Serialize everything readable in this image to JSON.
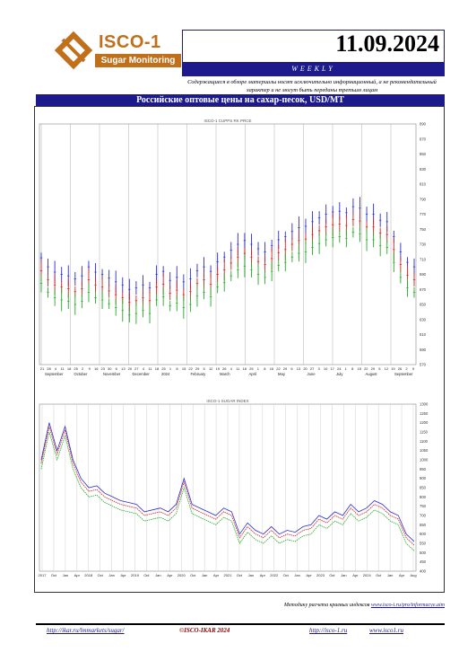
{
  "brand": {
    "name": "ISCO-1",
    "tagline": "Sugar Monitoring",
    "accent": "#c0701a"
  },
  "header": {
    "date": "11.09.2024",
    "period": "WEEKLY",
    "bar_color": "#1c1a8c"
  },
  "disclaimer": "Содержащиеся в обзоре материалы носят исключительно информационный, а не рекомендательный характер и не могут быть переданы третьим лицам",
  "chart_title": "Российские оптовые цены на сахар-песок, USD/MT",
  "footer": {
    "note_prefix": "Методику расчета краевых индексов",
    "note_link": "www.isco-i.ru/pro/informacye.aim",
    "url_left": "http://ikar.ru/lmmarkets/sugar/",
    "center": "©ISCO-IKAR 2024",
    "url_r1": "http://isco-1.ru",
    "url_r2": "www.isco1.ru"
  },
  "chart_data": [
    {
      "type": "line",
      "subtitle": "ISCO-1 CUPPS RK PRCE",
      "y_ticks": [
        570,
        590,
        610,
        630,
        650,
        670,
        690,
        710,
        730,
        750,
        770,
        790,
        810,
        830,
        850,
        870,
        890
      ],
      "x_day_labels": [
        "21",
        "28",
        "4",
        "11",
        "18",
        "25",
        "2",
        "9",
        "16",
        "23",
        "30",
        "6",
        "13",
        "20",
        "27",
        "4",
        "11",
        "18",
        "25",
        "1",
        "8",
        "15",
        "22",
        "29",
        "5",
        "12",
        "19",
        "26",
        "4",
        "11",
        "18",
        "25",
        "1",
        "8",
        "15",
        "22",
        "29",
        "6",
        "13",
        "20",
        "27",
        "3",
        "10",
        "17",
        "24",
        "1",
        "8",
        "15",
        "22",
        "29",
        "5",
        "12",
        "19",
        "26",
        "2",
        "9"
      ],
      "x_month_labels": [
        "September",
        "October",
        "November",
        "December",
        "2024",
        "February",
        "March",
        "April",
        "May",
        "June",
        "July",
        "August",
        "September"
      ],
      "series": [
        {
          "color": "#2b2bd0",
          "values": [
            712,
            700,
            693,
            690,
            688,
            684,
            688,
            700,
            693,
            690,
            685,
            680,
            676,
            670,
            672,
            676,
            672,
            690,
            694,
            682,
            686,
            680,
            684,
            695,
            700,
            694,
            707,
            713,
            722,
            730,
            735,
            730,
            724,
            720,
            728,
            736,
            740,
            747,
            752,
            754,
            760,
            765,
            770,
            773,
            774,
            772,
            780,
            778,
            770,
            770,
            762,
            760,
            740,
            720,
            706,
            700
          ]
        },
        {
          "color": "#cc2222",
          "values": [
            695,
            683,
            676,
            673,
            671,
            667,
            671,
            683,
            676,
            673,
            668,
            663,
            659,
            653,
            655,
            659,
            655,
            673,
            677,
            665,
            669,
            663,
            667,
            678,
            683,
            677,
            690,
            696,
            705,
            713,
            718,
            713,
            707,
            703,
            711,
            719,
            723,
            730,
            735,
            737,
            743,
            748,
            753,
            756,
            757,
            755,
            763,
            761,
            753,
            753,
            745,
            743,
            723,
            703,
            689,
            683
          ]
        },
        {
          "color": "#22aa22",
          "values": [
            678,
            666,
            659,
            656,
            654,
            650,
            654,
            666,
            659,
            656,
            651,
            646,
            642,
            636,
            638,
            642,
            638,
            656,
            660,
            648,
            652,
            646,
            650,
            661,
            666,
            660,
            673,
            679,
            688,
            696,
            701,
            696,
            690,
            686,
            694,
            702,
            706,
            713,
            718,
            720,
            726,
            731,
            736,
            739,
            740,
            738,
            746,
            744,
            736,
            736,
            728,
            726,
            706,
            686,
            672,
            666
          ]
        }
      ]
    },
    {
      "type": "line",
      "subtitle": "ISCO-1 SUGAR INDEX",
      "y_ticks": [
        400,
        450,
        500,
        550,
        600,
        650,
        700,
        750,
        800,
        850,
        900,
        950,
        1000,
        1050,
        1100,
        1150,
        1200,
        1250,
        1300
      ],
      "x_labels": [
        "2017",
        "Oct",
        "Jan",
        "Apr",
        "2018",
        "Oct",
        "Jan",
        "Apr",
        "2019",
        "Oct",
        "Jan",
        "Apr",
        "2020",
        "Oct",
        "Jan",
        "Apr",
        "2021",
        "Oct",
        "Jan",
        "Apr",
        "2022",
        "Oct",
        "Jan",
        "Apr",
        "2023",
        "Oct",
        "Jan",
        "Apr",
        "2024",
        "Oct",
        "Jan",
        "Apr",
        "Aug"
      ],
      "series": [
        {
          "color": "#2b2bd0",
          "values": [
            1000,
            1200,
            1050,
            1180,
            1000,
            900,
            850,
            860,
            820,
            800,
            780,
            770,
            760,
            720,
            730,
            740,
            720,
            760,
            900,
            760,
            740,
            720,
            700,
            740,
            720,
            600,
            660,
            620,
            600,
            640,
            600,
            620,
            610,
            640,
            650,
            700,
            680,
            720,
            700,
            760,
            720,
            740,
            780,
            760,
            720,
            700,
            600,
            560
          ]
        },
        {
          "color": "#cc2222",
          "values": [
            980,
            1180,
            1030,
            1160,
            980,
            880,
            830,
            840,
            800,
            780,
            760,
            750,
            740,
            700,
            710,
            720,
            700,
            740,
            880,
            740,
            720,
            700,
            680,
            720,
            700,
            580,
            640,
            600,
            580,
            620,
            580,
            600,
            590,
            620,
            630,
            680,
            660,
            700,
            680,
            740,
            700,
            720,
            760,
            740,
            700,
            680,
            580,
            540
          ]
        },
        {
          "color": "#22aa22",
          "values": [
            950,
            1150,
            1000,
            1130,
            950,
            850,
            800,
            810,
            770,
            750,
            730,
            720,
            710,
            670,
            680,
            690,
            670,
            710,
            850,
            710,
            690,
            670,
            650,
            690,
            670,
            550,
            610,
            570,
            550,
            590,
            550,
            570,
            560,
            590,
            600,
            650,
            630,
            670,
            650,
            710,
            670,
            690,
            730,
            710,
            670,
            650,
            550,
            510
          ]
        }
      ]
    }
  ]
}
